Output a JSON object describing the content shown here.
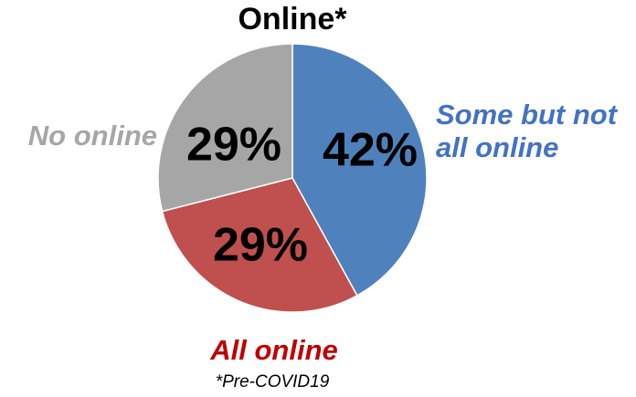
{
  "chart_data": {
    "type": "pie",
    "title": "Online*",
    "categories": [
      "Some but not all online",
      "All online",
      "No online"
    ],
    "values": [
      42,
      29,
      29
    ],
    "value_labels": [
      "42%",
      "29%",
      "29%"
    ],
    "colors": [
      "#4f81bd",
      "#c0504d",
      "#a6a6a6"
    ],
    "label_colors": [
      "#4472c4",
      "#c00000",
      "#a6a6a6"
    ],
    "note": "*Pre-COVID19"
  }
}
